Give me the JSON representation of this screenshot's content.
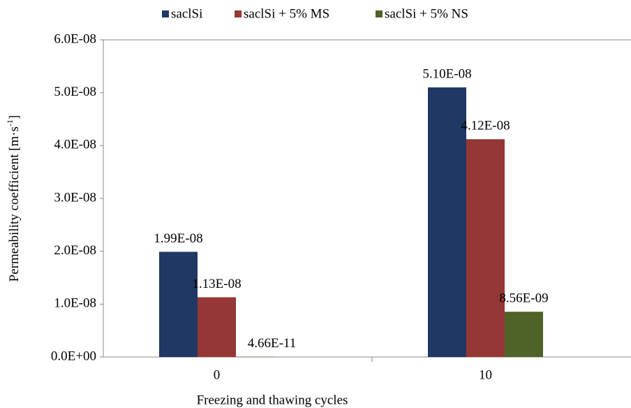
{
  "chart_data": {
    "type": "bar",
    "ylabel": {
      "text": "Permeability coefficient [m·s",
      "sup": "-1",
      "end": "]"
    },
    "xlabel": "Freezing and thawing cycles",
    "categories": [
      "0",
      "10"
    ],
    "series": [
      {
        "name": "saclSi",
        "color": "#1f3864",
        "values": [
          1.99e-08,
          5.1e-08
        ],
        "value_labels": [
          "1.99E-08",
          "5.10E-08"
        ]
      },
      {
        "name": "saclSi + 5% MS",
        "color": "#953735",
        "values": [
          1.13e-08,
          4.12e-08
        ],
        "value_labels": [
          "1.13E-08",
          "4.12E-08"
        ]
      },
      {
        "name": "saclSi + 5% NS",
        "color": "#4f6228",
        "values": [
          4.66e-11,
          8.56e-09
        ],
        "value_labels": [
          "4.66E-11",
          "8.56E-09"
        ]
      }
    ],
    "ylim": [
      0,
      6e-08
    ],
    "yticks": [
      {
        "value": 0,
        "label": "0.0E+00"
      },
      {
        "value": 1e-08,
        "label": "1.0E-08"
      },
      {
        "value": 2e-08,
        "label": "2.0E-08"
      },
      {
        "value": 3e-08,
        "label": "3.0E-08"
      },
      {
        "value": 4e-08,
        "label": "4.0E-08"
      },
      {
        "value": 5e-08,
        "label": "5.0E-08"
      },
      {
        "value": 6e-08,
        "label": "6.0E-08"
      }
    ],
    "legend": "top"
  }
}
